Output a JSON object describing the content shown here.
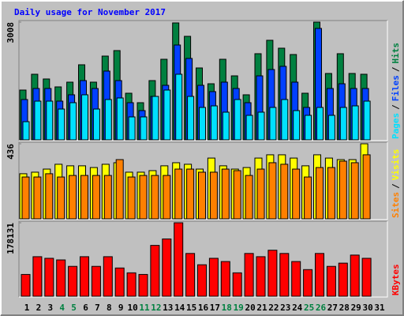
{
  "title": "Daily usage for November 2017",
  "legend_separator": "/",
  "highlight_categories": [
    4,
    5,
    11,
    12,
    18,
    19,
    25,
    26
  ],
  "highlight_color": "#008040",
  "chart_data": [
    {
      "type": "bar",
      "categories": [
        1,
        2,
        3,
        4,
        5,
        6,
        7,
        8,
        9,
        10,
        11,
        12,
        13,
        14,
        15,
        16,
        17,
        18,
        19,
        20,
        21,
        22,
        23,
        24,
        25,
        26,
        27,
        28,
        29,
        30,
        31
      ],
      "ylim": [
        0,
        3008
      ],
      "yticks": [
        3008
      ],
      "series": [
        {
          "name": "Hits",
          "color": "#008040",
          "values": [
            1272,
            1676,
            1555,
            1353,
            1474,
            1918,
            1474,
            2140,
            2281,
            1191,
            949,
            1514,
            2059,
            2988,
            2645,
            1837,
            1433,
            2059,
            1635,
            1151,
            2201,
            2544,
            2342,
            2180,
            1191,
            3008,
            1696,
            2201,
            1696,
            1676,
            null
          ]
        },
        {
          "name": "Files",
          "color": "#0040ff",
          "values": [
            1030,
            1312,
            1312,
            989,
            1151,
            1514,
            1312,
            1757,
            1514,
            949,
            747,
            1110,
            1393,
            2423,
            2080,
            1393,
            1232,
            1474,
            1312,
            949,
            1635,
            1797,
            1878,
            1474,
            828,
            2847,
            1312,
            1433,
            1312,
            1312,
            null
          ]
        },
        {
          "name": "Pages",
          "color": "#00e0ff",
          "values": [
            464,
            989,
            989,
            787,
            949,
            1151,
            787,
            1030,
            1070,
            586,
            586,
            1110,
            1272,
            1676,
            1110,
            828,
            868,
            707,
            1030,
            626,
            707,
            828,
            1030,
            747,
            626,
            828,
            626,
            828,
            868,
            989,
            null
          ]
        }
      ]
    },
    {
      "type": "bar",
      "categories": [
        1,
        2,
        3,
        4,
        5,
        6,
        7,
        8,
        9,
        10,
        11,
        12,
        13,
        14,
        15,
        16,
        17,
        18,
        19,
        20,
        21,
        22,
        23,
        24,
        25,
        26,
        27,
        28,
        29,
        30,
        31
      ],
      "ylim": [
        0,
        436
      ],
      "yticks": [
        436
      ],
      "series": [
        {
          "name": "Visits",
          "color": "#ffff00",
          "values": [
            262,
            271,
            289,
            317,
            308,
            308,
            298,
            317,
            326,
            271,
            271,
            280,
            308,
            326,
            317,
            289,
            353,
            308,
            289,
            298,
            353,
            372,
            372,
            353,
            308,
            372,
            353,
            344,
            344,
            436,
            null
          ]
        },
        {
          "name": "Sites",
          "color": "#ff8000",
          "values": [
            243,
            243,
            262,
            243,
            252,
            252,
            252,
            252,
            344,
            243,
            252,
            252,
            252,
            289,
            289,
            271,
            271,
            289,
            280,
            252,
            289,
            326,
            317,
            289,
            243,
            298,
            298,
            335,
            326,
            372,
            null
          ]
        }
      ]
    },
    {
      "type": "bar",
      "categories": [
        1,
        2,
        3,
        4,
        5,
        6,
        7,
        8,
        9,
        10,
        11,
        12,
        13,
        14,
        15,
        16,
        17,
        18,
        19,
        20,
        21,
        22,
        23,
        24,
        25,
        26,
        27,
        28,
        29,
        30,
        31
      ],
      "ylim": [
        0,
        178131
      ],
      "yticks": [
        178131
      ],
      "series": [
        {
          "name": "KBytes",
          "color": "#ff0000",
          "values": [
            52839,
            95893,
            91979,
            88065,
            72409,
            95893,
            72409,
            95893,
            68495,
            56753,
            52839,
            123291,
            138947,
            178131,
            103721,
            76323,
            91979,
            84151,
            56753,
            103721,
            95893,
            111549,
            103721,
            84151,
            64581,
            103721,
            72409,
            80237,
            99807,
            91979,
            null
          ]
        }
      ]
    }
  ]
}
